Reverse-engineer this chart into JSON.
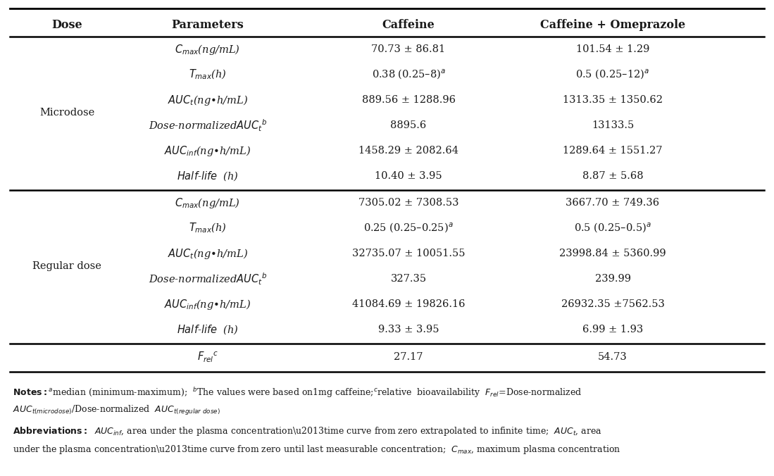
{
  "headers": [
    "Dose",
    "Parameters",
    "Caffeine",
    "Caffeine + Omeprazole"
  ],
  "microdose_params": [
    "$C_{max}$(ng/mL)",
    "$T_{max}$(h)",
    "$AUC_{t}$(ng•h/mL)",
    "Dose-normalized$AUC_{t}$$^{b}$",
    "$AUC_{inf}$(ng•h/mL)",
    "$Half$-$life$  (h)"
  ],
  "microdose_caffeine": [
    "70.73 ± 86.81",
    "0.38 (0.25–8)$^{a}$",
    "889.56 ± 1288.96",
    "8895.6",
    "1458.29 ± 2082.64",
    "10.40 ± 3.95"
  ],
  "microdose_combi": [
    "101.54 ± 1.29",
    "0.5 (0.25–12)$^{a}$",
    "1313.35 ± 1350.62",
    "13133.5",
    "1289.64 ± 1551.27",
    "8.87 ± 5.68"
  ],
  "regular_params": [
    "$C_{max}$(ng/mL)",
    "$T_{max}$(h)",
    "$AUC_{t}$(ng•h/mL)",
    "Dose-normalized$AUC_{t}$$^{b}$",
    "$AUC_{inf}$(ng•h/mL)",
    "$Half$-$life$  (h)"
  ],
  "regular_caffeine": [
    "7305.02 ± 7308.53",
    "0.25 (0.25–0.25)$^{a}$",
    "32735.07 ± 10051.55",
    "327.35",
    "41084.69 ± 19826.16",
    "9.33 ± 3.95"
  ],
  "regular_combi": [
    "3667.70 ± 749.36",
    "0.5 (0.25–0.5)$^{a}$",
    "23998.84 ± 5360.99",
    "239.99",
    "26932.35 ±7562.53",
    "6.99 ± 1.93"
  ],
  "frel_caffeine": "27.17",
  "frel_combi": "54.73",
  "background_color": "#ffffff",
  "text_color": "#1a1a1a"
}
